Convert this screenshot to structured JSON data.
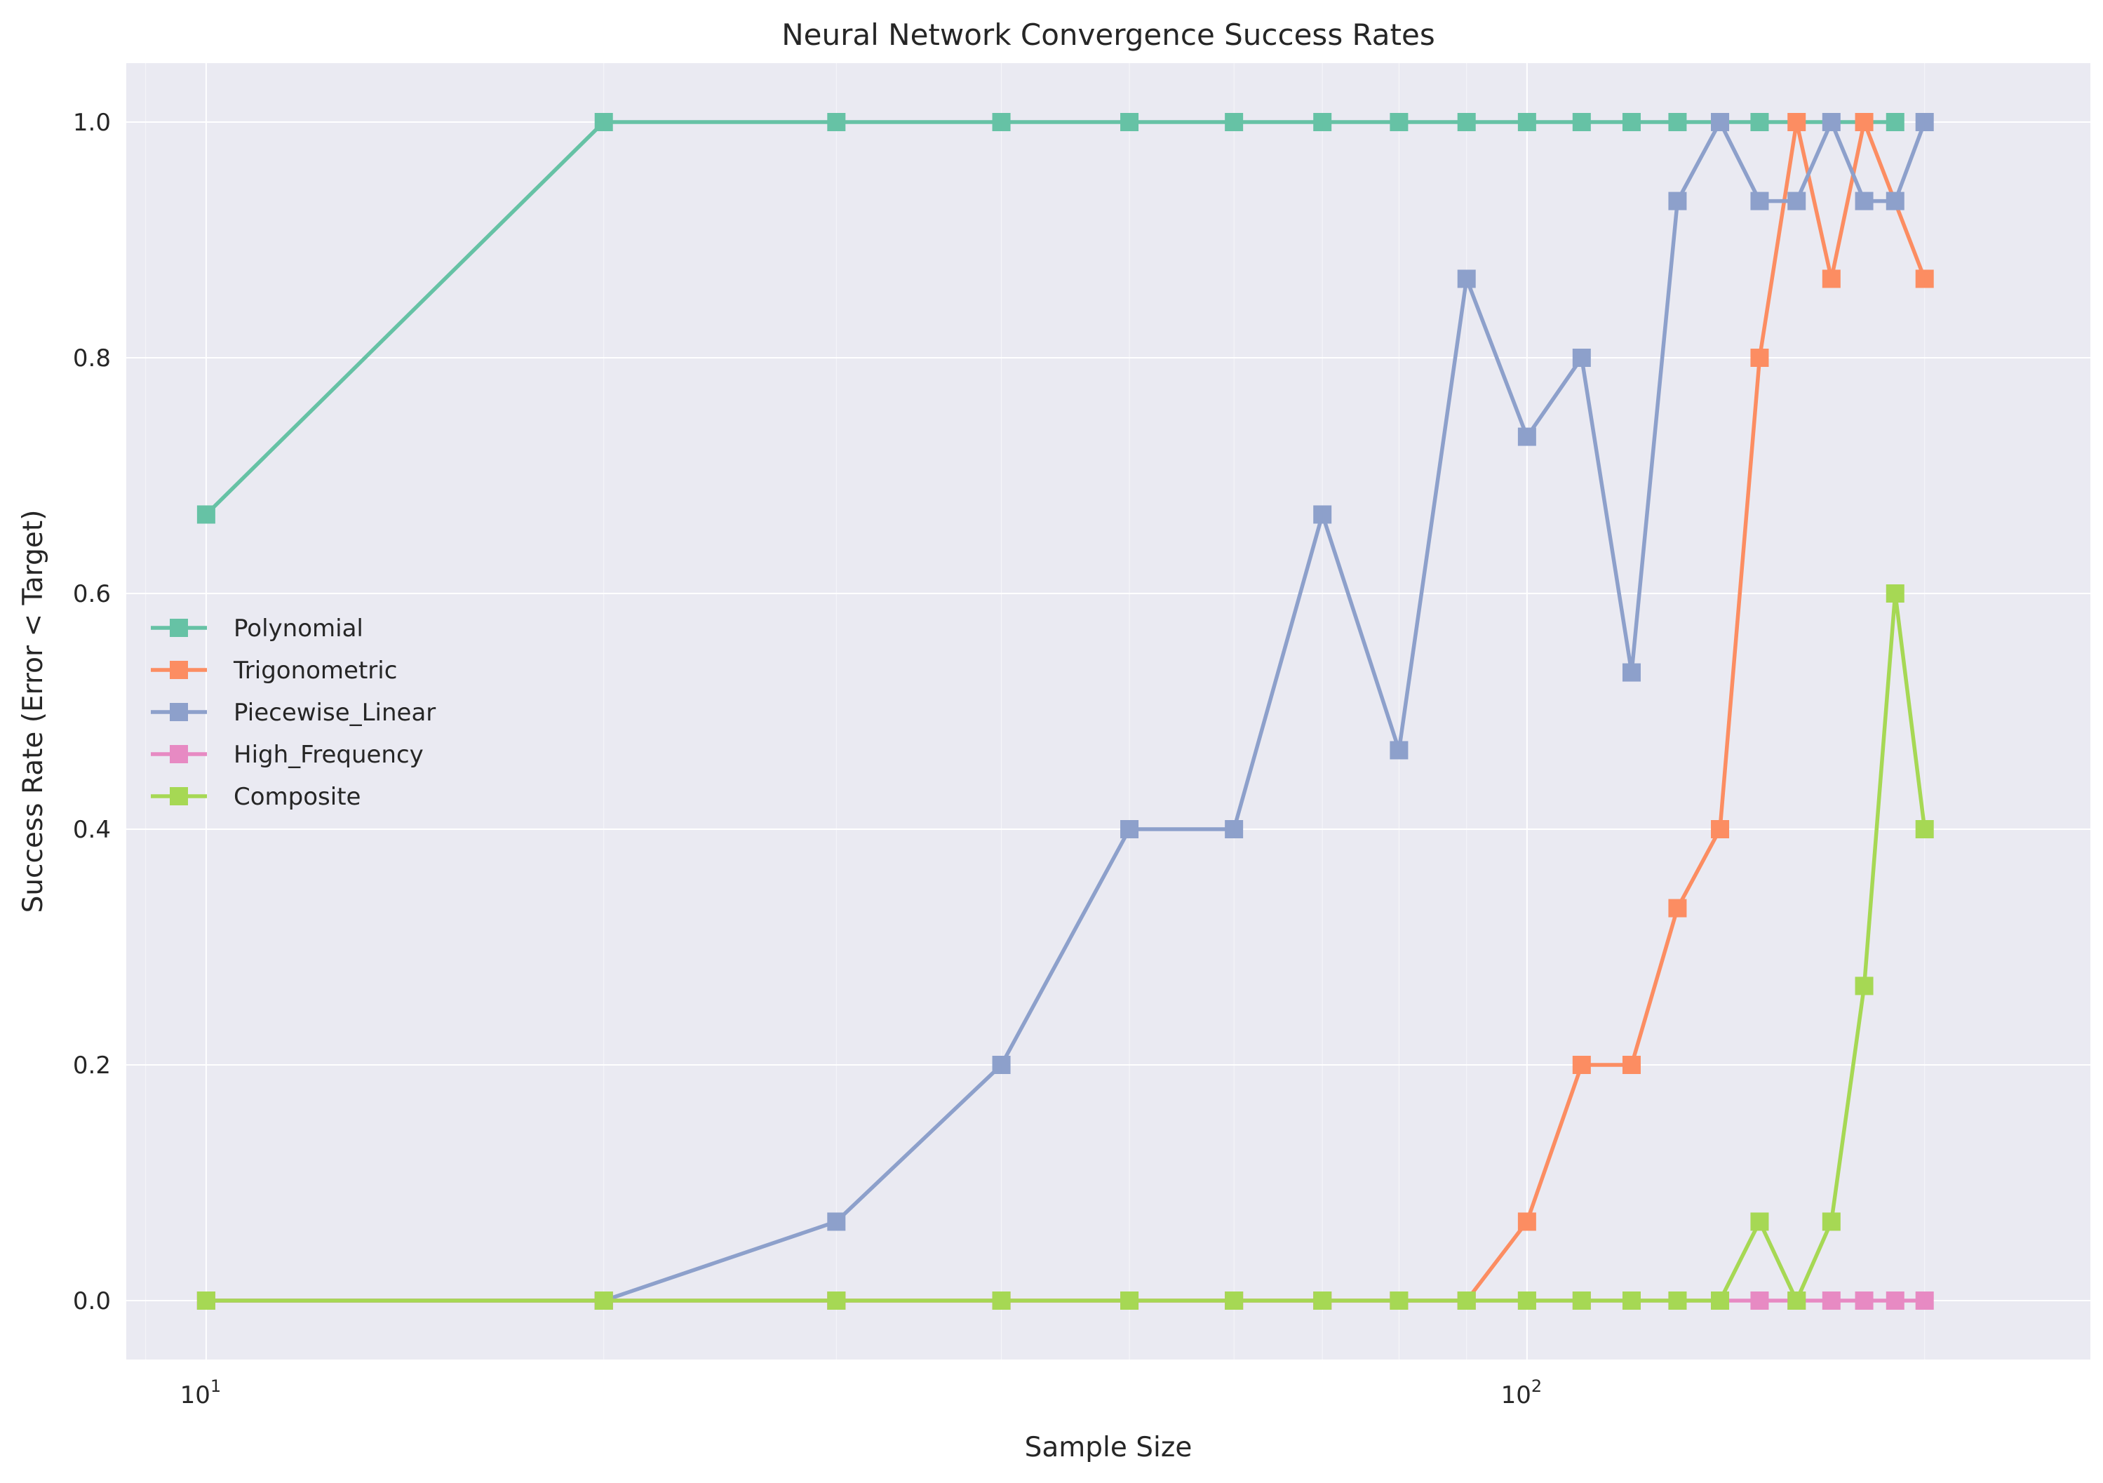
{
  "chart_data": {
    "type": "line",
    "title": "Neural Network Convergence Success Rates",
    "xlabel": "Sample Size",
    "ylabel": "Success Rate (Error < Target)",
    "x_scale": "log",
    "xlim": [
      8.7,
      267
    ],
    "ylim": [
      -0.05,
      1.05
    ],
    "x_ticks": [
      {
        "value": 10,
        "base": "10",
        "exp": "1"
      },
      {
        "value": 100,
        "base": "10",
        "exp": "2"
      }
    ],
    "y_ticks": [
      {
        "value": 0.0,
        "label": "0.0"
      },
      {
        "value": 0.2,
        "label": "0.2"
      },
      {
        "value": 0.4,
        "label": "0.4"
      },
      {
        "value": 0.6,
        "label": "0.6"
      },
      {
        "value": 0.8,
        "label": "0.8"
      },
      {
        "value": 1.0,
        "label": "1.0"
      }
    ],
    "grid": true,
    "legend_position": "center-left",
    "x": [
      10,
      20,
      30,
      40,
      50,
      60,
      70,
      80,
      90,
      100,
      110,
      120,
      130,
      140,
      150,
      160,
      170,
      180,
      190,
      200
    ],
    "series": [
      {
        "name": "Polynomial",
        "color": "#66c2a5",
        "values": [
          0.667,
          1,
          1,
          1,
          1,
          1,
          1,
          1,
          1,
          1,
          1,
          1,
          1,
          1,
          1,
          null,
          null,
          null,
          1,
          null
        ]
      },
      {
        "name": "Trigonometric",
        "color": "#fc8d62",
        "values": [
          0,
          0,
          0,
          0,
          0,
          0,
          0,
          0,
          0,
          0.067,
          0.2,
          0.2,
          0.333,
          0.4,
          0.8,
          1,
          0.867,
          1,
          null,
          0.867
        ]
      },
      {
        "name": "Piecewise_Linear",
        "color": "#8da0cb",
        "values": [
          0,
          0,
          0.067,
          0.2,
          0.4,
          0.4,
          0.667,
          0.467,
          0.867,
          0.733,
          0.8,
          0.533,
          0.933,
          1,
          0.933,
          0.933,
          1,
          0.933,
          0.933,
          1
        ]
      },
      {
        "name": "High_Frequency",
        "color": "#e78ac3",
        "values": [
          0,
          0,
          0,
          0,
          0,
          0,
          0,
          0,
          0,
          0,
          0,
          0,
          0,
          0,
          0,
          0,
          0,
          0,
          0,
          0
        ]
      },
      {
        "name": "Composite",
        "color": "#a6d854",
        "values": [
          0,
          0,
          0,
          0,
          0,
          0,
          0,
          0,
          0,
          0,
          0,
          0,
          0,
          0,
          0.067,
          0,
          0.067,
          0.267,
          0.6,
          0.4
        ]
      }
    ]
  }
}
